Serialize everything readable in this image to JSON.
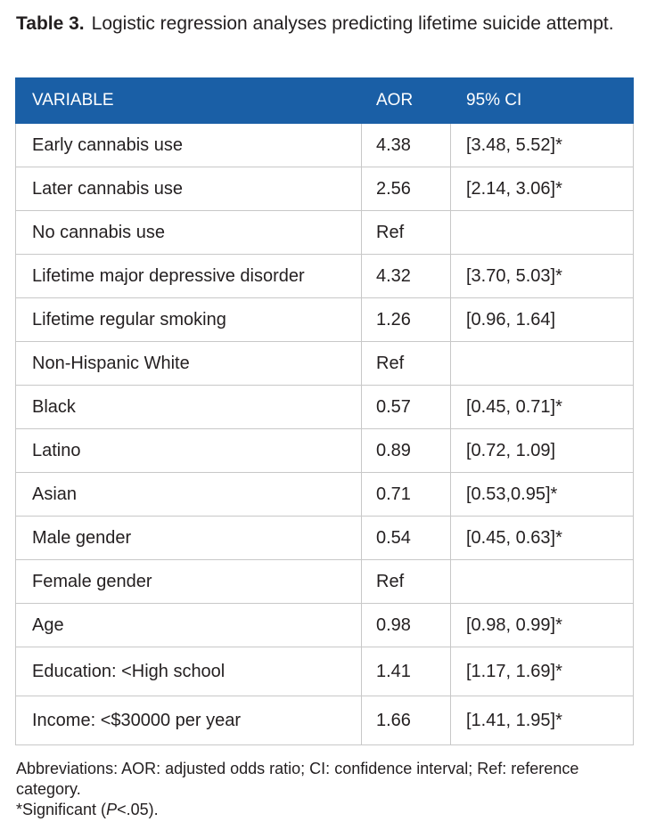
{
  "caption": {
    "label": "Table 3.",
    "text": "Logistic regression analyses predicting lifetime suicide attempt."
  },
  "table": {
    "headers": [
      "VARIABLE",
      "AOR",
      "95% CI"
    ],
    "rows": [
      {
        "variable": "Early cannabis use",
        "aor": "4.38",
        "ci": "[3.48, 5.52]*"
      },
      {
        "variable": "Later cannabis use",
        "aor": "2.56",
        "ci": "[2.14, 3.06]*"
      },
      {
        "variable": "No cannabis use",
        "aor": "Ref",
        "ci": ""
      },
      {
        "variable": "Lifetime major depressive disorder",
        "aor": "4.32",
        "ci": "[3.70, 5.03]*"
      },
      {
        "variable": "Lifetime regular smoking",
        "aor": "1.26",
        "ci": "[0.96, 1.64]"
      },
      {
        "variable": "Non-Hispanic White",
        "aor": "Ref",
        "ci": ""
      },
      {
        "variable": "Black",
        "aor": "0.57",
        "ci": "[0.45, 0.71]*"
      },
      {
        "variable": "Latino",
        "aor": "0.89",
        "ci": "[0.72, 1.09]"
      },
      {
        "variable": "Asian",
        "aor": "0.71",
        "ci": "[0.53,0.95]*"
      },
      {
        "variable": "Male gender",
        "aor": "0.54",
        "ci": "[0.45, 0.63]*"
      },
      {
        "variable": "Female gender",
        "aor": "Ref",
        "ci": ""
      },
      {
        "variable": "Age",
        "aor": "0.98",
        "ci": "[0.98, 0.99]*"
      },
      {
        "variable": "Education: <High school",
        "aor": "1.41",
        "ci": "[1.17, 1.69]*"
      },
      {
        "variable": "Income: <$30000 per year",
        "aor": "1.66",
        "ci": "[1.41, 1.95]*"
      }
    ]
  },
  "notes": {
    "abbreviations": "Abbreviations: AOR: adjusted odds ratio; CI: confidence interval; Ref: reference category.",
    "significance_prefix": "*Significant (",
    "significance_p": "P",
    "significance_suffix": "<.05)."
  },
  "colors": {
    "header_background": "#1a5fa6",
    "header_text": "#ffffff",
    "border": "#c8c8c8"
  }
}
